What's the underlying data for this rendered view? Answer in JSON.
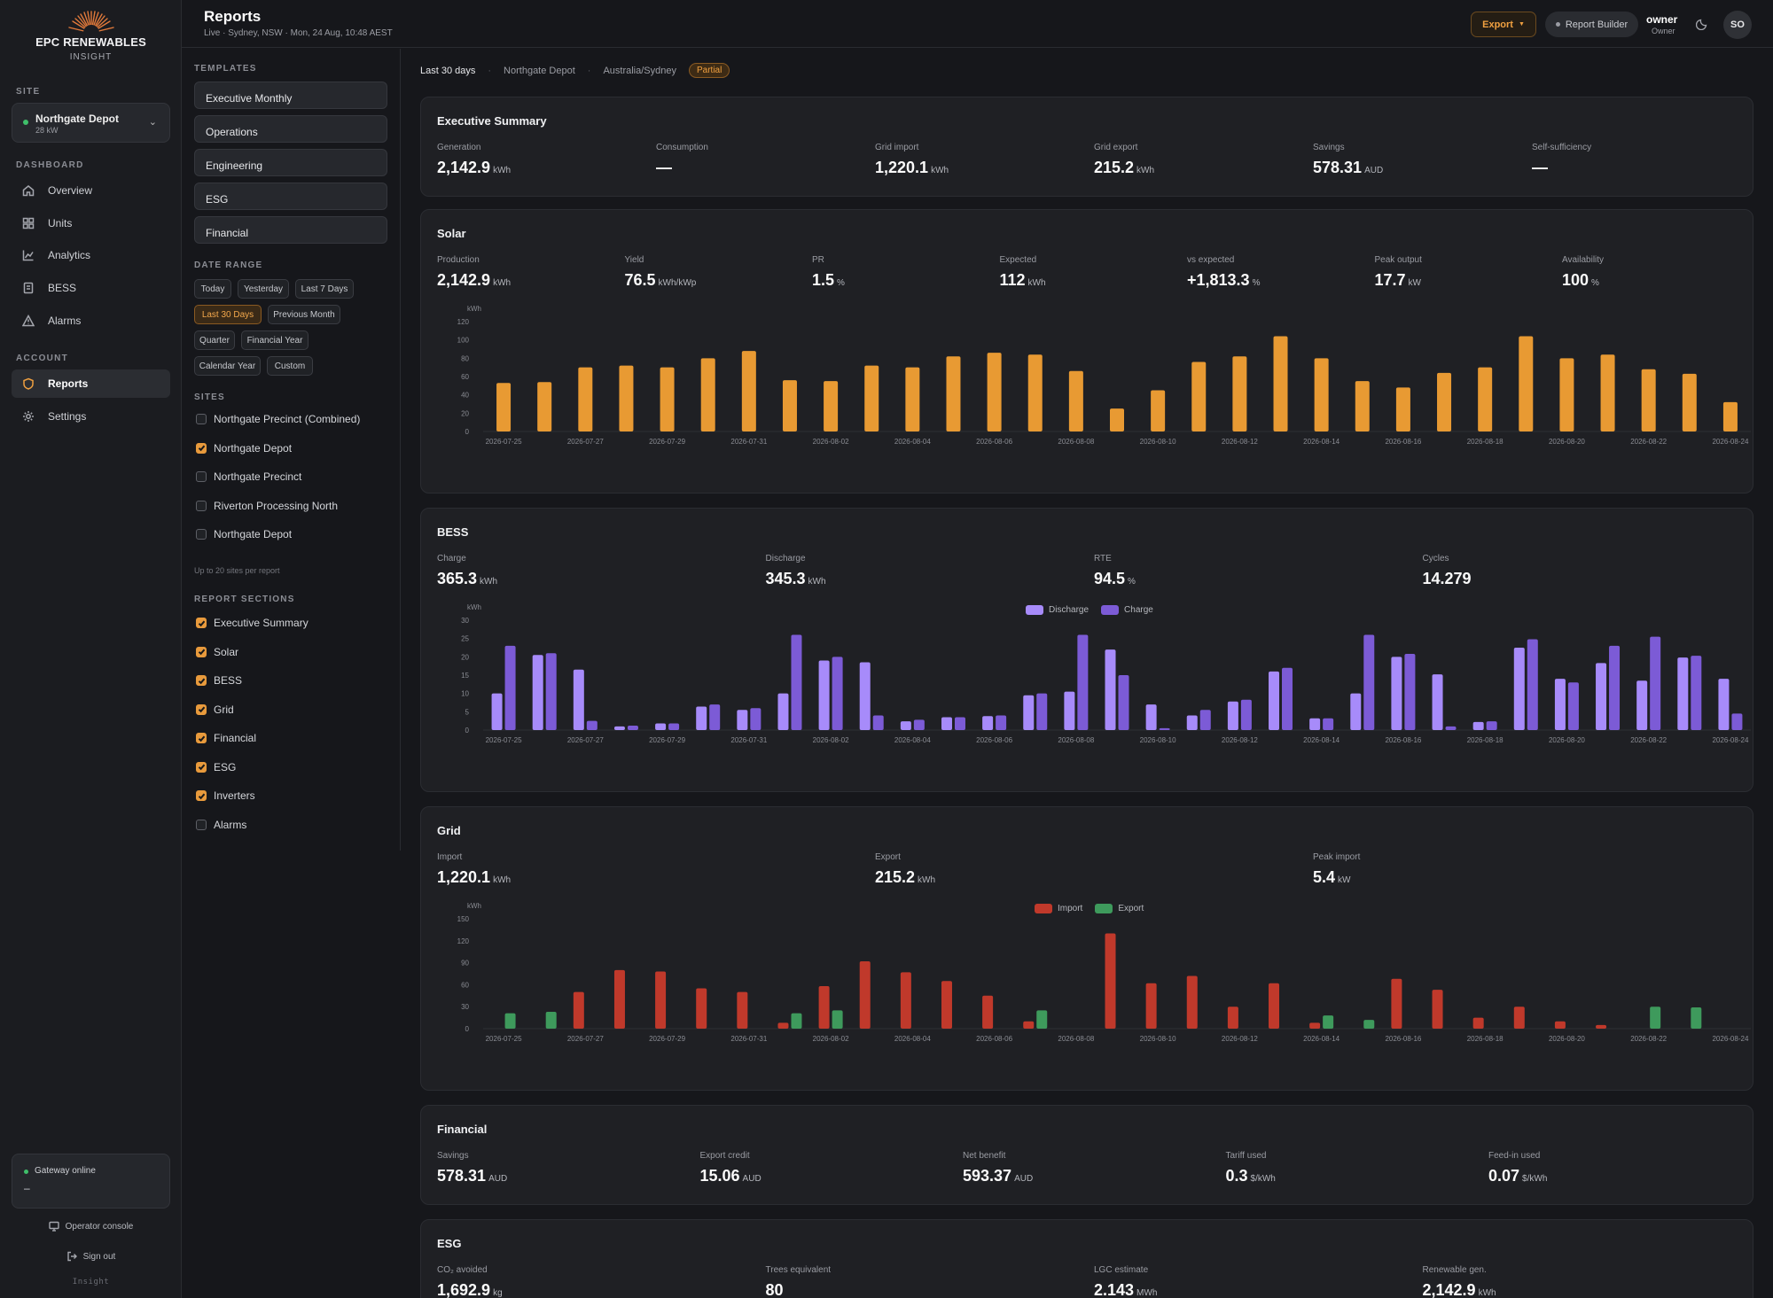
{
  "brand": {
    "name": "EPC RENEWABLES",
    "sub": "INSIGHT"
  },
  "sidebar": {
    "site_label": "SITE",
    "site": {
      "name": "Northgate Depot",
      "capacity": "28 kW"
    },
    "dashboard_label": "DASHBOARD",
    "dashboard_items": [
      {
        "label": "Overview",
        "icon": "home-icon"
      },
      {
        "label": "Units",
        "icon": "grid-icon"
      },
      {
        "label": "Analytics",
        "icon": "chart-line-icon"
      },
      {
        "label": "BESS",
        "icon": "battery-icon"
      },
      {
        "label": "Alarms",
        "icon": "warning-icon"
      }
    ],
    "account_label": "ACCOUNT",
    "account_items": [
      {
        "label": "Reports",
        "icon": "shield-icon",
        "active": true
      },
      {
        "label": "Settings",
        "icon": "gear-icon"
      }
    ],
    "gateway": {
      "status": "Gateway online",
      "value": "–"
    },
    "operator_console": "Operator console",
    "sign_out": "Sign out",
    "footer": "Insight"
  },
  "header": {
    "title": "Reports",
    "subtitle": "Live · Sydney, NSW · Mon, 24 Aug, 10:48 AEST",
    "export": "Export",
    "report_builder": "Report Builder",
    "user_name": "owner",
    "user_role": "Owner",
    "avatar": "SO"
  },
  "config": {
    "templates_label": "TEMPLATES",
    "templates": [
      "Executive Monthly",
      "Operations",
      "Engineering",
      "ESG",
      "Financial"
    ],
    "date_range_label": "DATE RANGE",
    "date_ranges": [
      {
        "label": "Today"
      },
      {
        "label": "Yesterday"
      },
      {
        "label": "Last 7 Days"
      },
      {
        "label": "Last 30 Days",
        "selected": true
      },
      {
        "label": "Previous Month"
      },
      {
        "label": "Quarter"
      },
      {
        "label": "Financial Year"
      },
      {
        "label": "Calendar Year"
      },
      {
        "label": "Custom"
      }
    ],
    "sites_label": "SITES",
    "sites": [
      {
        "label": "Northgate Precinct (Combined)",
        "checked": false
      },
      {
        "label": "Northgate Depot",
        "checked": true
      },
      {
        "label": "Northgate Precinct",
        "checked": false
      },
      {
        "label": "Riverton Processing North",
        "checked": false
      },
      {
        "label": "Northgate Depot",
        "checked": false
      }
    ],
    "sites_note": "Up to 20 sites per report",
    "sections_label": "REPORT SECTIONS",
    "sections": [
      {
        "label": "Executive Summary",
        "checked": true
      },
      {
        "label": "Solar",
        "checked": true
      },
      {
        "label": "BESS",
        "checked": true
      },
      {
        "label": "Grid",
        "checked": true
      },
      {
        "label": "Financial",
        "checked": true
      },
      {
        "label": "ESG",
        "checked": true
      },
      {
        "label": "Inverters",
        "checked": true
      },
      {
        "label": "Alarms",
        "checked": false
      }
    ]
  },
  "filters": {
    "range": "Last 30 days",
    "site": "Northgate Depot",
    "tz": "Australia/Sydney",
    "badge": "Partial"
  },
  "colors": {
    "solar": "#e89a33",
    "discharge": "#a78bfa",
    "charge": "#7c5bd6",
    "import": "#c0392b",
    "export": "#3e9a5c",
    "accent": "#f0a040"
  },
  "exec": {
    "title": "Executive Summary",
    "metrics": [
      {
        "label": "Generation",
        "value": "2,142.9",
        "unit": "kWh"
      },
      {
        "label": "Consumption",
        "value": "—",
        "unit": ""
      },
      {
        "label": "Grid import",
        "value": "1,220.1",
        "unit": "kWh"
      },
      {
        "label": "Grid export",
        "value": "215.2",
        "unit": "kWh"
      },
      {
        "label": "Savings",
        "value": "578.31",
        "unit": "AUD"
      },
      {
        "label": "Self-sufficiency",
        "value": "—",
        "unit": ""
      }
    ]
  },
  "solar": {
    "title": "Solar",
    "metrics": [
      {
        "label": "Production",
        "value": "2,142.9",
        "unit": "kWh"
      },
      {
        "label": "Yield",
        "value": "76.5",
        "unit": "kWh/kWp"
      },
      {
        "label": "PR",
        "value": "1.5",
        "unit": "%"
      },
      {
        "label": "Expected",
        "value": "112",
        "unit": "kWh"
      },
      {
        "label": "vs expected",
        "value": "+1,813.3",
        "unit": "%"
      },
      {
        "label": "Peak output",
        "value": "17.7",
        "unit": "kW"
      },
      {
        "label": "Availability",
        "value": "100",
        "unit": "%"
      }
    ]
  },
  "bess": {
    "title": "BESS",
    "metrics": [
      {
        "label": "Charge",
        "value": "365.3",
        "unit": "kWh"
      },
      {
        "label": "Discharge",
        "value": "345.3",
        "unit": "kWh"
      },
      {
        "label": "RTE",
        "value": "94.5",
        "unit": "%"
      },
      {
        "label": "Cycles",
        "value": "14.279",
        "unit": ""
      }
    ]
  },
  "grid": {
    "title": "Grid",
    "metrics": [
      {
        "label": "Import",
        "value": "1,220.1",
        "unit": "kWh"
      },
      {
        "label": "Export",
        "value": "215.2",
        "unit": "kWh"
      },
      {
        "label": "Peak import",
        "value": "5.4",
        "unit": "kW"
      }
    ]
  },
  "financial": {
    "title": "Financial",
    "metrics": [
      {
        "label": "Savings",
        "value": "578.31",
        "unit": "AUD"
      },
      {
        "label": "Export credit",
        "value": "15.06",
        "unit": "AUD"
      },
      {
        "label": "Net benefit",
        "value": "593.37",
        "unit": "AUD"
      },
      {
        "label": "Tariff used",
        "value": "0.3",
        "unit": "$/kWh"
      },
      {
        "label": "Feed-in used",
        "value": "0.07",
        "unit": "$/kWh"
      }
    ]
  },
  "esg": {
    "title": "ESG",
    "metrics": [
      {
        "label": "CO₂ avoided",
        "value": "1,692.9",
        "unit": "kg"
      },
      {
        "label": "Trees equivalent",
        "value": "80",
        "unit": ""
      },
      {
        "label": "LGC estimate",
        "value": "2.143",
        "unit": "MWh"
      },
      {
        "label": "Renewable gen.",
        "value": "2,142.9",
        "unit": "kWh"
      }
    ]
  },
  "chart_data": [
    {
      "type": "bar",
      "ylabel": "kWh",
      "ylim": [
        0,
        120
      ],
      "yticks": [
        0,
        20,
        40,
        60,
        80,
        100,
        120
      ],
      "categories": [
        "2026-07-25",
        "2026-07-26",
        "2026-07-27",
        "2026-07-28",
        "2026-07-29",
        "2026-07-30",
        "2026-07-31",
        "2026-08-01",
        "2026-08-02",
        "2026-08-03",
        "2026-08-04",
        "2026-08-05",
        "2026-08-06",
        "2026-08-07",
        "2026-08-08",
        "2026-08-09",
        "2026-08-10",
        "2026-08-11",
        "2026-08-12",
        "2026-08-13",
        "2026-08-14",
        "2026-08-15",
        "2026-08-16",
        "2026-08-17",
        "2026-08-18",
        "2026-08-19",
        "2026-08-20",
        "2026-08-21",
        "2026-08-22",
        "2026-08-23",
        "2026-08-24"
      ],
      "xticks": [
        "2026-07-25",
        "2026-07-27",
        "2026-07-29",
        "2026-07-31",
        "2026-08-02",
        "2026-08-04",
        "2026-08-06",
        "2026-08-08",
        "2026-08-10",
        "2026-08-12",
        "2026-08-14",
        "2026-08-16",
        "2026-08-18",
        "2026-08-20",
        "2026-08-22",
        "2026-08-24"
      ],
      "series": [
        {
          "values": [
            53,
            54,
            70,
            72,
            70,
            80,
            88,
            56,
            55,
            72,
            70,
            82,
            86,
            84,
            66,
            25,
            45,
            76,
            82,
            104,
            80,
            55,
            48,
            64,
            70,
            104,
            80,
            84,
            68,
            63,
            32
          ]
        }
      ]
    },
    {
      "type": "bar",
      "ylabel": "kWh",
      "ylim": [
        0,
        30
      ],
      "yticks": [
        0,
        5,
        10,
        15,
        20,
        25,
        30
      ],
      "legend": "top-center",
      "categories": [
        "2026-07-25",
        "2026-07-26",
        "2026-07-27",
        "2026-07-28",
        "2026-07-29",
        "2026-07-30",
        "2026-07-31",
        "2026-08-01",
        "2026-08-02",
        "2026-08-03",
        "2026-08-04",
        "2026-08-05",
        "2026-08-06",
        "2026-08-07",
        "2026-08-08",
        "2026-08-09",
        "2026-08-10",
        "2026-08-11",
        "2026-08-12",
        "2026-08-13",
        "2026-08-14",
        "2026-08-15",
        "2026-08-16",
        "2026-08-17",
        "2026-08-18",
        "2026-08-19",
        "2026-08-20",
        "2026-08-21",
        "2026-08-22",
        "2026-08-23",
        "2026-08-24"
      ],
      "xticks": [
        "2026-07-25",
        "2026-07-27",
        "2026-07-29",
        "2026-07-31",
        "2026-08-02",
        "2026-08-04",
        "2026-08-06",
        "2026-08-08",
        "2026-08-10",
        "2026-08-12",
        "2026-08-14",
        "2026-08-16",
        "2026-08-18",
        "2026-08-20",
        "2026-08-22",
        "2026-08-24"
      ],
      "series": [
        {
          "name": "Discharge",
          "values": [
            10,
            20.5,
            16.5,
            1,
            1.8,
            6.4,
            5.5,
            10,
            19,
            18.5,
            2.4,
            3.5,
            3.8,
            9.5,
            10.5,
            22,
            7,
            4,
            7.8,
            16,
            3.2,
            10,
            20,
            15.2,
            2.2,
            22.5,
            14,
            18.3,
            13.5,
            19.8,
            14
          ]
        },
        {
          "name": "Charge",
          "values": [
            23,
            21,
            2.5,
            1.2,
            1.8,
            7,
            6,
            26,
            20,
            4,
            2.8,
            3.5,
            4,
            10,
            26,
            15,
            0.5,
            5.5,
            8.3,
            17,
            3.2,
            26,
            20.8,
            1,
            2.4,
            24.8,
            13,
            23,
            25.5,
            20.3,
            4.5
          ]
        }
      ]
    },
    {
      "type": "bar",
      "ylabel": "kWh",
      "ylim": [
        0,
        150
      ],
      "yticks": [
        0,
        30,
        60,
        90,
        120,
        150
      ],
      "legend": "top-center",
      "categories": [
        "2026-07-25",
        "2026-07-26",
        "2026-07-27",
        "2026-07-28",
        "2026-07-29",
        "2026-07-30",
        "2026-07-31",
        "2026-08-01",
        "2026-08-02",
        "2026-08-03",
        "2026-08-04",
        "2026-08-05",
        "2026-08-06",
        "2026-08-07",
        "2026-08-08",
        "2026-08-09",
        "2026-08-10",
        "2026-08-11",
        "2026-08-12",
        "2026-08-13",
        "2026-08-14",
        "2026-08-15",
        "2026-08-16",
        "2026-08-17",
        "2026-08-18",
        "2026-08-19",
        "2026-08-20",
        "2026-08-21",
        "2026-08-22",
        "2026-08-23",
        "2026-08-24"
      ],
      "xticks": [
        "2026-07-25",
        "2026-07-27",
        "2026-07-29",
        "2026-07-31",
        "2026-08-02",
        "2026-08-04",
        "2026-08-06",
        "2026-08-08",
        "2026-08-10",
        "2026-08-12",
        "2026-08-14",
        "2026-08-16",
        "2026-08-18",
        "2026-08-20",
        "2026-08-22",
        "2026-08-24"
      ],
      "series": [
        {
          "name": "Import",
          "values": [
            0,
            0,
            50,
            80,
            78,
            55,
            50,
            8,
            58,
            92,
            77,
            65,
            45,
            10,
            0,
            130,
            62,
            72,
            30,
            62,
            8,
            0,
            68,
            53,
            15,
            30,
            10,
            5,
            0,
            0,
            0
          ]
        },
        {
          "name": "Export",
          "values": [
            21,
            23,
            0,
            0,
            0,
            0,
            0,
            21,
            25,
            0,
            0,
            0,
            0,
            25,
            0,
            0,
            0,
            0,
            0,
            0,
            18,
            12,
            0,
            0,
            0,
            0,
            0,
            0,
            30,
            29,
            0
          ]
        }
      ]
    }
  ]
}
